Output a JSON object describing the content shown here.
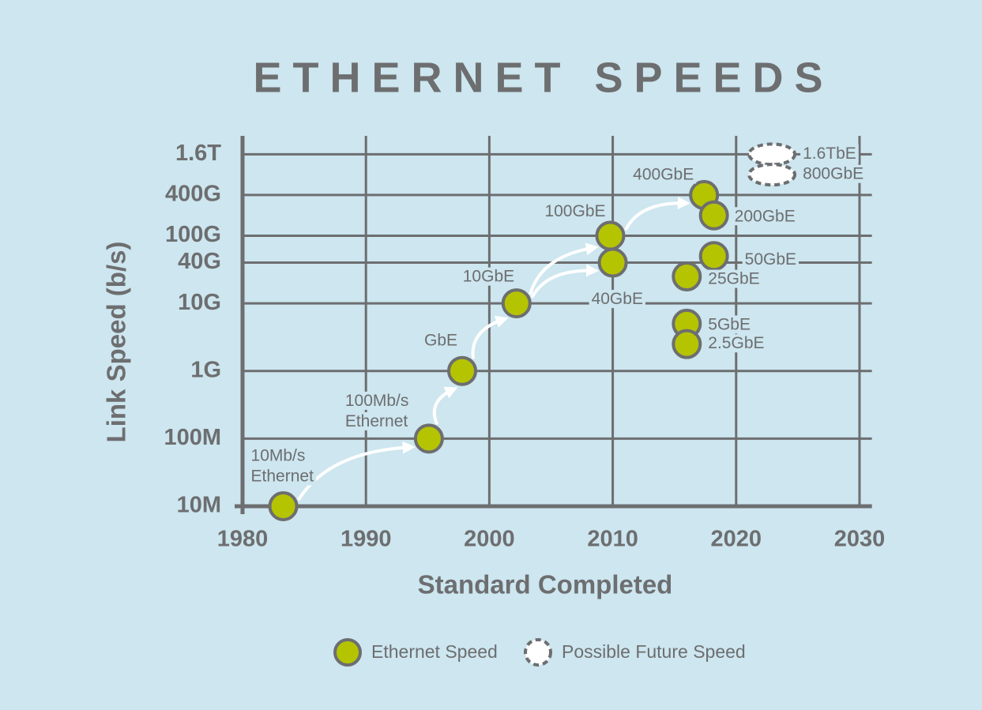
{
  "chart_data": {
    "type": "scatter",
    "title": "ETHERNET SPEEDS",
    "x_label": "Standard Completed",
    "y_label": "Link Speed (b/s)",
    "log_y": true,
    "grid": true,
    "legend": "bottom",
    "xlim": [
      1980,
      2031
    ],
    "xticks": [
      1980,
      1990,
      2000,
      2010,
      2020,
      2030
    ],
    "ylim": [
      10000000,
      3000000000000
    ],
    "yticks": [
      {
        "value": 10000000,
        "label": "10M"
      },
      {
        "value": 100000000,
        "label": "100M"
      },
      {
        "value": 1000000000,
        "label": "1G"
      },
      {
        "value": 10000000000,
        "label": "10G"
      },
      {
        "value": 40000000000,
        "label": "40G"
      },
      {
        "value": 100000000000,
        "label": "100G"
      },
      {
        "value": 400000000000,
        "label": "400G"
      },
      {
        "value": 1600000000000,
        "label": "1.6T"
      }
    ],
    "series": [
      {
        "name": "Ethernet Speed",
        "color": "#b5c400",
        "x": [
          1983.3,
          1995.1,
          1997.8,
          2002.2,
          2009.8,
          2010,
          2017.4,
          2018.2,
          2018.2,
          2016,
          2016,
          2016
        ],
        "values": [
          10000000,
          100000000,
          1000000000,
          10000000000,
          100000000000,
          40000000000,
          400000000000,
          200000000000,
          50000000000,
          25000000000,
          5000000000,
          2500000000
        ],
        "labels": [
          [
            "10Mb/s",
            "Ethernet"
          ],
          [
            "100Mb/s",
            "Ethernet"
          ],
          [
            "GbE"
          ],
          [
            "10GbE"
          ],
          [
            "100GbE"
          ],
          [
            "40GbE"
          ],
          [
            "400GbE"
          ],
          [
            "200GbE"
          ],
          [
            "50GbE"
          ],
          [
            "25GbE"
          ],
          [
            "5GbE"
          ],
          [
            "2.5GbE"
          ]
        ]
      },
      {
        "name": "Possible Future Speed",
        "color": "#ffffff",
        "x": [
          2022.9,
          2022.9
        ],
        "values": [
          1600000000000,
          800000000000
        ],
        "labels": [
          [
            "1.6TbE"
          ],
          [
            "800GbE"
          ]
        ]
      }
    ]
  }
}
